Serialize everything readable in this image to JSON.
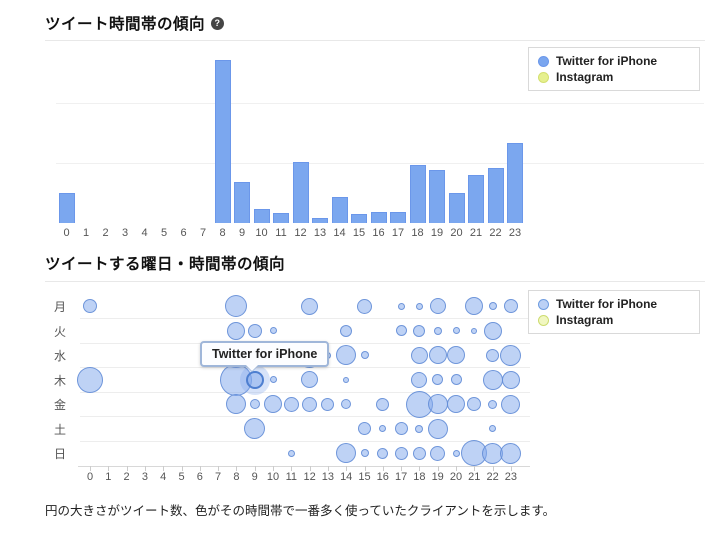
{
  "section_hourly": {
    "title": "ツイート時間帯の傾向",
    "help_icon": "?"
  },
  "section_weekday": {
    "title": "ツイートする曜日・時間帯の傾向",
    "tooltip": {
      "text": "Twitter for iPhone",
      "target_day": "木",
      "target_hour": 9
    }
  },
  "legend": {
    "items": [
      {
        "label": "Twitter for iPhone",
        "fill": "#7aa6ef",
        "border": "#6b97ea",
        "bubble_fill": "rgba(131,169,236,0.55)",
        "bubble_border": "#6e9ce0"
      },
      {
        "label": "Instagram",
        "fill": "#e6f08e",
        "border": "#d4e070",
        "bubble_fill": "rgba(230,240,142,0.55)",
        "bubble_border": "#cddc70"
      }
    ]
  },
  "footer": {
    "note": "円の大きさがツイート数、色がその時間帯で一番多く使っていたクライアントを示します。"
  },
  "chart_data": [
    {
      "type": "bar",
      "title": "ツイート時間帯の傾向",
      "categories": [
        "0",
        "1",
        "2",
        "3",
        "4",
        "5",
        "6",
        "7",
        "8",
        "9",
        "10",
        "11",
        "12",
        "13",
        "14",
        "15",
        "16",
        "17",
        "18",
        "19",
        "20",
        "21",
        "22",
        "23"
      ],
      "values": [
        30,
        0,
        0,
        0,
        0,
        0,
        0,
        0,
        163,
        41,
        14,
        10,
        61,
        5,
        26,
        9,
        11,
        11,
        58,
        53,
        30,
        48,
        55,
        80
      ],
      "value_unit": "relative tweet count (pixel height; y-axis unlabeled)",
      "ylim": [
        0,
        178
      ],
      "gridlines_at": [
        60,
        120
      ],
      "bar_color": "#7ba7ef",
      "xlabel": "hour of day",
      "ylabel": "",
      "legend_position": "top-right",
      "series_name": "Twitter for iPhone"
    },
    {
      "type": "bubble",
      "title": "ツイートする曜日・時間帯の傾向",
      "x_categories": [
        "0",
        "1",
        "2",
        "3",
        "4",
        "5",
        "6",
        "7",
        "8",
        "9",
        "10",
        "11",
        "12",
        "13",
        "14",
        "15",
        "16",
        "17",
        "18",
        "19",
        "20",
        "21",
        "22",
        "23"
      ],
      "y_categories": [
        "月",
        "火",
        "水",
        "木",
        "金",
        "土",
        "日"
      ],
      "size_meaning": "tweet count",
      "color_meaning": "dominant client",
      "client": "Twitter for iPhone",
      "highlight": {
        "day": "木",
        "hour": 9
      },
      "legend_position": "top-right",
      "points": [
        {
          "day": "月",
          "hour": 0,
          "r": 7
        },
        {
          "day": "月",
          "hour": 8,
          "r": 11
        },
        {
          "day": "月",
          "hour": 12,
          "r": 8.5
        },
        {
          "day": "月",
          "hour": 15,
          "r": 7.5
        },
        {
          "day": "月",
          "hour": 17,
          "r": 3.5
        },
        {
          "day": "月",
          "hour": 18,
          "r": 3.5
        },
        {
          "day": "月",
          "hour": 19,
          "r": 8
        },
        {
          "day": "月",
          "hour": 21,
          "r": 9
        },
        {
          "day": "月",
          "hour": 22,
          "r": 4
        },
        {
          "day": "月",
          "hour": 23,
          "r": 7
        },
        {
          "day": "火",
          "hour": 8,
          "r": 9
        },
        {
          "day": "火",
          "hour": 9,
          "r": 7
        },
        {
          "day": "火",
          "hour": 10,
          "r": 3.5
        },
        {
          "day": "火",
          "hour": 14,
          "r": 6
        },
        {
          "day": "火",
          "hour": 17,
          "r": 5.5
        },
        {
          "day": "火",
          "hour": 18,
          "r": 6
        },
        {
          "day": "火",
          "hour": 19,
          "r": 4
        },
        {
          "day": "火",
          "hour": 20,
          "r": 3.5
        },
        {
          "day": "火",
          "hour": 21,
          "r": 3
        },
        {
          "day": "火",
          "hour": 22,
          "r": 9
        },
        {
          "day": "水",
          "hour": 8,
          "r": 13
        },
        {
          "day": "水",
          "hour": 12,
          "r": 12.5
        },
        {
          "day": "水",
          "hour": 13,
          "r": 3.5
        },
        {
          "day": "水",
          "hour": 14,
          "r": 10
        },
        {
          "day": "水",
          "hour": 15,
          "r": 4
        },
        {
          "day": "水",
          "hour": 18,
          "r": 8.5
        },
        {
          "day": "水",
          "hour": 19,
          "r": 9
        },
        {
          "day": "水",
          "hour": 20,
          "r": 9
        },
        {
          "day": "水",
          "hour": 22,
          "r": 6.5
        },
        {
          "day": "水",
          "hour": 23,
          "r": 10.5
        },
        {
          "day": "木",
          "hour": 0,
          "r": 13
        },
        {
          "day": "木",
          "hour": 8,
          "r": 16
        },
        {
          "day": "木",
          "hour": 9,
          "r": 9
        },
        {
          "day": "木",
          "hour": 10,
          "r": 3.5
        },
        {
          "day": "木",
          "hour": 12,
          "r": 8.5
        },
        {
          "day": "木",
          "hour": 14,
          "r": 3
        },
        {
          "day": "木",
          "hour": 18,
          "r": 8
        },
        {
          "day": "木",
          "hour": 19,
          "r": 5.5
        },
        {
          "day": "木",
          "hour": 20,
          "r": 5.5
        },
        {
          "day": "木",
          "hour": 22,
          "r": 10
        },
        {
          "day": "木",
          "hour": 23,
          "r": 9
        },
        {
          "day": "金",
          "hour": 8,
          "r": 10
        },
        {
          "day": "金",
          "hour": 9,
          "r": 5
        },
        {
          "day": "金",
          "hour": 10,
          "r": 9
        },
        {
          "day": "金",
          "hour": 11,
          "r": 7.5
        },
        {
          "day": "金",
          "hour": 12,
          "r": 7.5
        },
        {
          "day": "金",
          "hour": 13,
          "r": 6.5
        },
        {
          "day": "金",
          "hour": 14,
          "r": 5
        },
        {
          "day": "金",
          "hour": 16,
          "r": 6.5
        },
        {
          "day": "金",
          "hour": 18,
          "r": 13.5
        },
        {
          "day": "金",
          "hour": 19,
          "r": 10
        },
        {
          "day": "金",
          "hour": 20,
          "r": 9
        },
        {
          "day": "金",
          "hour": 21,
          "r": 7
        },
        {
          "day": "金",
          "hour": 22,
          "r": 4.5
        },
        {
          "day": "金",
          "hour": 23,
          "r": 9.5
        },
        {
          "day": "土",
          "hour": 9,
          "r": 10.5
        },
        {
          "day": "土",
          "hour": 15,
          "r": 6.5
        },
        {
          "day": "土",
          "hour": 16,
          "r": 3.5
        },
        {
          "day": "土",
          "hour": 17,
          "r": 6.5
        },
        {
          "day": "土",
          "hour": 18,
          "r": 4
        },
        {
          "day": "土",
          "hour": 19,
          "r": 10
        },
        {
          "day": "土",
          "hour": 22,
          "r": 3.5
        },
        {
          "day": "日",
          "hour": 11,
          "r": 3.5
        },
        {
          "day": "日",
          "hour": 14,
          "r": 10
        },
        {
          "day": "日",
          "hour": 15,
          "r": 4
        },
        {
          "day": "日",
          "hour": 16,
          "r": 5.5
        },
        {
          "day": "日",
          "hour": 17,
          "r": 6.5
        },
        {
          "day": "日",
          "hour": 18,
          "r": 6.5
        },
        {
          "day": "日",
          "hour": 19,
          "r": 7.5
        },
        {
          "day": "日",
          "hour": 20,
          "r": 3.5
        },
        {
          "day": "日",
          "hour": 21,
          "r": 13
        },
        {
          "day": "日",
          "hour": 22,
          "r": 10.5
        },
        {
          "day": "日",
          "hour": 23,
          "r": 10.5
        }
      ]
    }
  ]
}
